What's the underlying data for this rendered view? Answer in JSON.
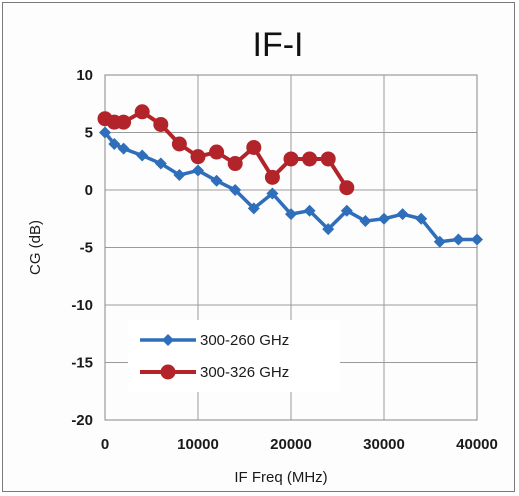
{
  "chart_data": {
    "type": "line",
    "title": "IF-I",
    "xlabel": "IF Freq (MHz)",
    "ylabel": "CG (dB)",
    "xlim": [
      0,
      40000
    ],
    "ylim": [
      -20,
      10
    ],
    "xticks": [
      0,
      10000,
      20000,
      30000,
      40000
    ],
    "yticks": [
      10,
      5,
      0,
      -5,
      -10,
      -15,
      -20
    ],
    "grid": true,
    "legend_position": "bottom-left",
    "series": [
      {
        "name": "300-260 GHz",
        "color": "#2f6eba",
        "marker": "diamond",
        "x": [
          0,
          1000,
          2000,
          4000,
          6000,
          8000,
          10000,
          12000,
          14000,
          16000,
          18000,
          20000,
          22000,
          24000,
          26000,
          28000,
          30000,
          32000,
          34000,
          36000,
          38000,
          40000
        ],
        "y": [
          5,
          4,
          3.6,
          3,
          2.3,
          1.3,
          1.7,
          0.8,
          0,
          -1.6,
          -0.3,
          -2.1,
          -1.8,
          -3.4,
          -1.8,
          -2.7,
          -2.5,
          -2.1,
          -2.5,
          -4.5,
          -4.3,
          -4.3
        ]
      },
      {
        "name": "300-326 GHz",
        "color": "#b2242a",
        "marker": "circle",
        "x": [
          0,
          1000,
          2000,
          4000,
          6000,
          8000,
          10000,
          12000,
          14000,
          16000,
          18000,
          20000,
          22000,
          24000,
          26000
        ],
        "y": [
          6.2,
          5.9,
          5.9,
          6.8,
          5.7,
          4,
          2.9,
          3.3,
          2.3,
          3.7,
          1.1,
          2.7,
          2.7,
          2.7,
          0.2
        ]
      }
    ]
  }
}
